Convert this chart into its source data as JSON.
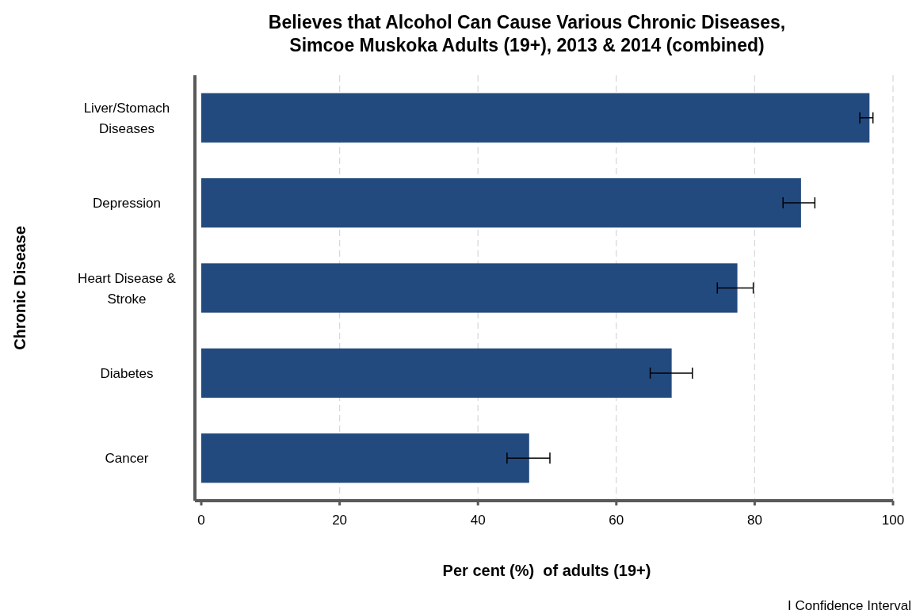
{
  "chart_data": {
    "type": "bar",
    "orientation": "horizontal",
    "title": "Believes that Alcohol Can Cause Various Chronic Diseases, Simcoe Muskoka Adults (19+), 2013 & 2014 (combined)",
    "xlabel": "Per cent (%)  of adults (19+)",
    "ylabel": "Chronic Disease",
    "categories": [
      "Liver/Stomach Diseases",
      "Depression",
      "Heart Disease & Stroke",
      "Diabetes",
      "Cancer"
    ],
    "values": [
      96.6,
      86.7,
      77.5,
      68,
      47.4
    ],
    "errors": [
      [
        95.2,
        97.1
      ],
      [
        84.1,
        88.7
      ],
      [
        74.6,
        79.8
      ],
      [
        64.9,
        71
      ],
      [
        44.2,
        50.4
      ]
    ],
    "color": "#234a7e",
    "xlim": [
      0,
      100
    ],
    "xticks": [
      0,
      20,
      40,
      60,
      80,
      100
    ],
    "grid": "x",
    "annotations": [
      "I Confidence Interval"
    ]
  }
}
